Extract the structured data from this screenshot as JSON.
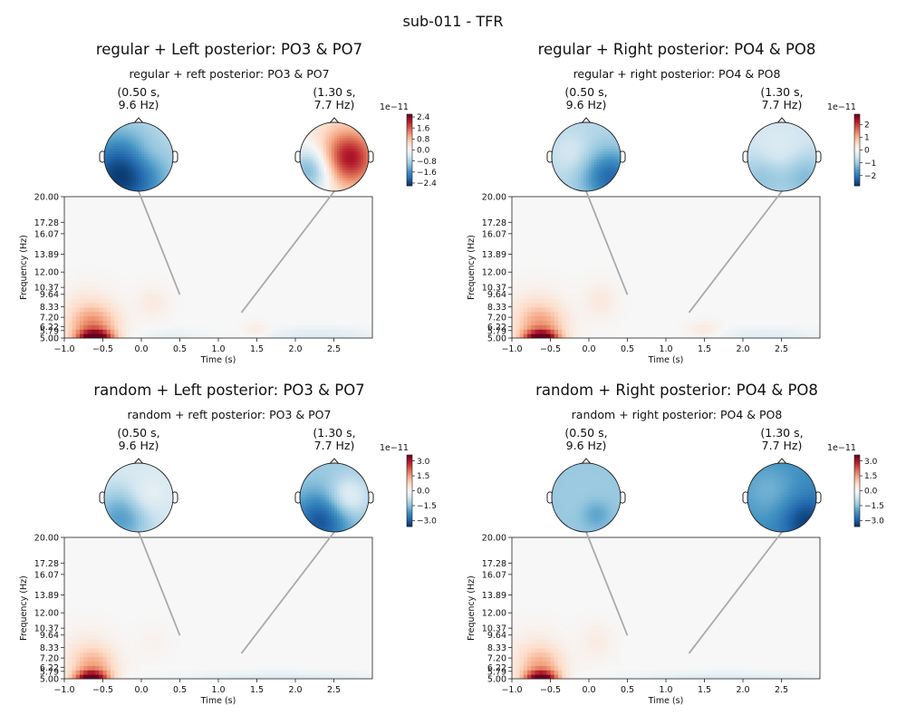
{
  "figure": {
    "title": "sub-011 - TFR"
  },
  "chart_data": [
    {
      "type": "heatmap",
      "title": "regular + Left posterior: PO3 & PO7",
      "subtitle": "regular + reft posterior: PO3 & PO7",
      "xlabel": "Time (s)",
      "ylabel": "Frequency (Hz)",
      "xlim": [
        -1.0,
        3.0
      ],
      "ylim": [
        5.0,
        20.0
      ],
      "x_ticks": [
        "−1.0",
        "−0.5",
        "0.0",
        "0.5",
        "1.0",
        "1.5",
        "2.0",
        "2.5"
      ],
      "x_tick_values": [
        -1.0,
        -0.5,
        0.0,
        0.5,
        1.0,
        1.5,
        2.0,
        2.5
      ],
      "y_ticks": [
        "5.00",
        "5.79",
        "6.22",
        "7.20",
        "8.33",
        "9.64",
        "10.37",
        "12.00",
        "13.89",
        "16.07",
        "17.28",
        "20.00"
      ],
      "y_tick_values": [
        5.0,
        5.79,
        6.22,
        7.2,
        8.33,
        9.64,
        10.37,
        12.0,
        13.89,
        16.07,
        17.28,
        20.0
      ],
      "colorscale": "RdBu_r",
      "colorbar": {
        "exponent": "1e−11",
        "ticks": [
          "2.4",
          "1.6",
          "0.8",
          "0.0",
          "−0.8",
          "−1.6",
          "−2.4"
        ],
        "tick_values": [
          2.4,
          1.6,
          0.8,
          0.0,
          -0.8,
          -1.6,
          -2.4
        ],
        "range": [
          -2.6,
          2.6
        ]
      },
      "topomaps": [
        {
          "label_line1": "(0.50 s,",
          "label_line2": "9.6 Hz)",
          "time": 0.5,
          "freq": 9.6,
          "pattern": "blue-left"
        },
        {
          "label_line1": "(1.30 s,",
          "label_line2": "7.7 Hz)",
          "time": 1.3,
          "freq": 7.7,
          "pattern": "red-right"
        }
      ],
      "blobs": [
        {
          "t": -0.6,
          "f": 5.0,
          "v": 2.4,
          "st": 0.16,
          "sf": 0.6
        },
        {
          "t": -0.62,
          "f": 6.2,
          "v": 1.1,
          "st": 0.22,
          "sf": 1.5
        },
        {
          "t": -0.7,
          "f": 8.0,
          "v": 0.3,
          "st": 0.25,
          "sf": 1.8
        },
        {
          "t": 0.15,
          "f": 8.8,
          "v": 0.25,
          "st": 0.15,
          "sf": 1.2
        },
        {
          "t": 1.5,
          "f": 5.8,
          "v": 0.25,
          "st": 0.12,
          "sf": 0.6
        },
        {
          "t": 2.3,
          "f": 5.3,
          "v": -0.35,
          "st": 0.5,
          "sf": 0.6
        },
        {
          "t": 0.4,
          "f": 5.3,
          "v": -0.2,
          "st": 0.3,
          "sf": 0.5
        }
      ]
    },
    {
      "type": "heatmap",
      "title": "regular + Right posterior: PO4 & PO8",
      "subtitle": "regular + right posterior: PO4 & PO8",
      "xlabel": "Time (s)",
      "ylabel": "Frequency (Hz)",
      "xlim": [
        -1.0,
        3.0
      ],
      "ylim": [
        5.0,
        20.0
      ],
      "x_ticks": [
        "−1.0",
        "−0.5",
        "0.0",
        "0.5",
        "1.0",
        "1.5",
        "2.0",
        "2.5"
      ],
      "x_tick_values": [
        -1.0,
        -0.5,
        0.0,
        0.5,
        1.0,
        1.5,
        2.0,
        2.5
      ],
      "y_ticks": [
        "5.00",
        "5.79",
        "6.22",
        "7.20",
        "8.33",
        "9.64",
        "10.37",
        "12.00",
        "13.89",
        "16.07",
        "17.28",
        "20.00"
      ],
      "y_tick_values": [
        5.0,
        5.79,
        6.22,
        7.2,
        8.33,
        9.64,
        10.37,
        12.0,
        13.89,
        16.07,
        17.28,
        20.0
      ],
      "colorscale": "RdBu_r",
      "colorbar": {
        "exponent": "1e−11",
        "ticks": [
          "2",
          "1",
          "0",
          "−1",
          "−2"
        ],
        "tick_values": [
          2,
          1,
          0,
          -1,
          -2
        ],
        "range": [
          -2.8,
          2.8
        ]
      },
      "topomaps": [
        {
          "label_line1": "(0.50 s,",
          "label_line2": "9.6 Hz)",
          "time": 0.5,
          "freq": 9.6,
          "pattern": "blue-both"
        },
        {
          "label_line1": "(1.30 s,",
          "label_line2": "7.7 Hz)",
          "time": 1.3,
          "freq": 7.7,
          "pattern": "blue-light"
        }
      ],
      "blobs": [
        {
          "t": -0.62,
          "f": 5.0,
          "v": 2.6,
          "st": 0.16,
          "sf": 0.6
        },
        {
          "t": -0.62,
          "f": 6.3,
          "v": 1.0,
          "st": 0.22,
          "sf": 1.5
        },
        {
          "t": -0.7,
          "f": 8.0,
          "v": 0.3,
          "st": 0.25,
          "sf": 1.8
        },
        {
          "t": 0.15,
          "f": 9.0,
          "v": 0.3,
          "st": 0.15,
          "sf": 1.4
        },
        {
          "t": 1.5,
          "f": 5.8,
          "v": 0.3,
          "st": 0.15,
          "sf": 0.7
        },
        {
          "t": 2.3,
          "f": 5.3,
          "v": -0.3,
          "st": 0.5,
          "sf": 0.6
        }
      ]
    },
    {
      "type": "heatmap",
      "title": "random + Left posterior: PO3 & PO7",
      "subtitle": "random + reft posterior: PO3 & PO7",
      "xlabel": "Time (s)",
      "ylabel": "Frequency (Hz)",
      "xlim": [
        -1.0,
        3.0
      ],
      "ylim": [
        5.0,
        20.0
      ],
      "x_ticks": [
        "−1.0",
        "−0.5",
        "0.0",
        "0.5",
        "1.0",
        "1.5",
        "2.0",
        "2.5"
      ],
      "x_tick_values": [
        -1.0,
        -0.5,
        0.0,
        0.5,
        1.0,
        1.5,
        2.0,
        2.5
      ],
      "y_ticks": [
        "5.00",
        "5.79",
        "6.22",
        "7.20",
        "8.33",
        "9.64",
        "10.37",
        "12.00",
        "13.89",
        "16.07",
        "17.28",
        "20.00"
      ],
      "y_tick_values": [
        5.0,
        5.79,
        6.22,
        7.2,
        8.33,
        9.64,
        10.37,
        12.0,
        13.89,
        16.07,
        17.28,
        20.0
      ],
      "colorscale": "RdBu_r",
      "colorbar": {
        "exponent": "1e−11",
        "ticks": [
          "3.0",
          "1.5",
          "0.0",
          "−1.5",
          "−3.0"
        ],
        "tick_values": [
          3.0,
          1.5,
          0.0,
          -1.5,
          -3.0
        ],
        "range": [
          -3.6,
          3.6
        ]
      },
      "topomaps": [
        {
          "label_line1": "(0.50 s,",
          "label_line2": "9.6 Hz)",
          "time": 0.5,
          "freq": 9.6,
          "pattern": "blue-faint"
        },
        {
          "label_line1": "(1.30 s,",
          "label_line2": "7.7 Hz)",
          "time": 1.3,
          "freq": 7.7,
          "pattern": "blue-mid"
        }
      ],
      "blobs": [
        {
          "t": -0.65,
          "f": 5.0,
          "v": 3.4,
          "st": 0.15,
          "sf": 0.6
        },
        {
          "t": -0.62,
          "f": 6.3,
          "v": 1.2,
          "st": 0.2,
          "sf": 1.4
        },
        {
          "t": -0.7,
          "f": 8.0,
          "v": 0.3,
          "st": 0.25,
          "sf": 1.8
        },
        {
          "t": 0.15,
          "f": 9.0,
          "v": 0.15,
          "st": 0.15,
          "sf": 1.2
        },
        {
          "t": 1.8,
          "f": 5.0,
          "v": -0.5,
          "st": 0.9,
          "sf": 0.5
        }
      ]
    },
    {
      "type": "heatmap",
      "title": "random + Right posterior: PO4 & PO8",
      "subtitle": "random + right posterior: PO4 & PO8",
      "xlabel": "Time (s)",
      "ylabel": "Frequency (Hz)",
      "xlim": [
        -1.0,
        3.0
      ],
      "ylim": [
        5.0,
        20.0
      ],
      "x_ticks": [
        "−1.0",
        "−0.5",
        "0.0",
        "0.5",
        "1.0",
        "1.5",
        "2.0",
        "2.5"
      ],
      "x_tick_values": [
        -1.0,
        -0.5,
        0.0,
        0.5,
        1.0,
        1.5,
        2.0,
        2.5
      ],
      "y_ticks": [
        "5.00",
        "5.79",
        "6.22",
        "7.20",
        "8.33",
        "9.64",
        "10.37",
        "12.00",
        "13.89",
        "16.07",
        "17.28",
        "20.00"
      ],
      "y_tick_values": [
        5.0,
        5.79,
        6.22,
        7.2,
        8.33,
        9.64,
        10.37,
        12.0,
        13.89,
        16.07,
        17.28,
        20.0
      ],
      "colorscale": "RdBu_r",
      "colorbar": {
        "exponent": "1e−11",
        "ticks": [
          "3.0",
          "1.5",
          "0.0",
          "−1.5",
          "−3.0"
        ],
        "tick_values": [
          3.0,
          1.5,
          0.0,
          -1.5,
          -3.0
        ],
        "range": [
          -3.6,
          3.6
        ]
      },
      "topomaps": [
        {
          "label_line1": "(0.50 s,",
          "label_line2": "9.6 Hz)",
          "time": 0.5,
          "freq": 9.6,
          "pattern": "blue-uniform"
        },
        {
          "label_line1": "(1.30 s,",
          "label_line2": "7.7 Hz)",
          "time": 1.3,
          "freq": 7.7,
          "pattern": "blue-strong"
        }
      ],
      "blobs": [
        {
          "t": -0.62,
          "f": 5.0,
          "v": 3.3,
          "st": 0.15,
          "sf": 0.6
        },
        {
          "t": -0.62,
          "f": 6.3,
          "v": 1.2,
          "st": 0.2,
          "sf": 1.4
        },
        {
          "t": -0.7,
          "f": 8.0,
          "v": 0.3,
          "st": 0.25,
          "sf": 1.8
        },
        {
          "t": 0.1,
          "f": 9.0,
          "v": 0.3,
          "st": 0.15,
          "sf": 1.4
        },
        {
          "t": 1.8,
          "f": 5.0,
          "v": -0.5,
          "st": 0.9,
          "sf": 0.5
        }
      ]
    }
  ]
}
